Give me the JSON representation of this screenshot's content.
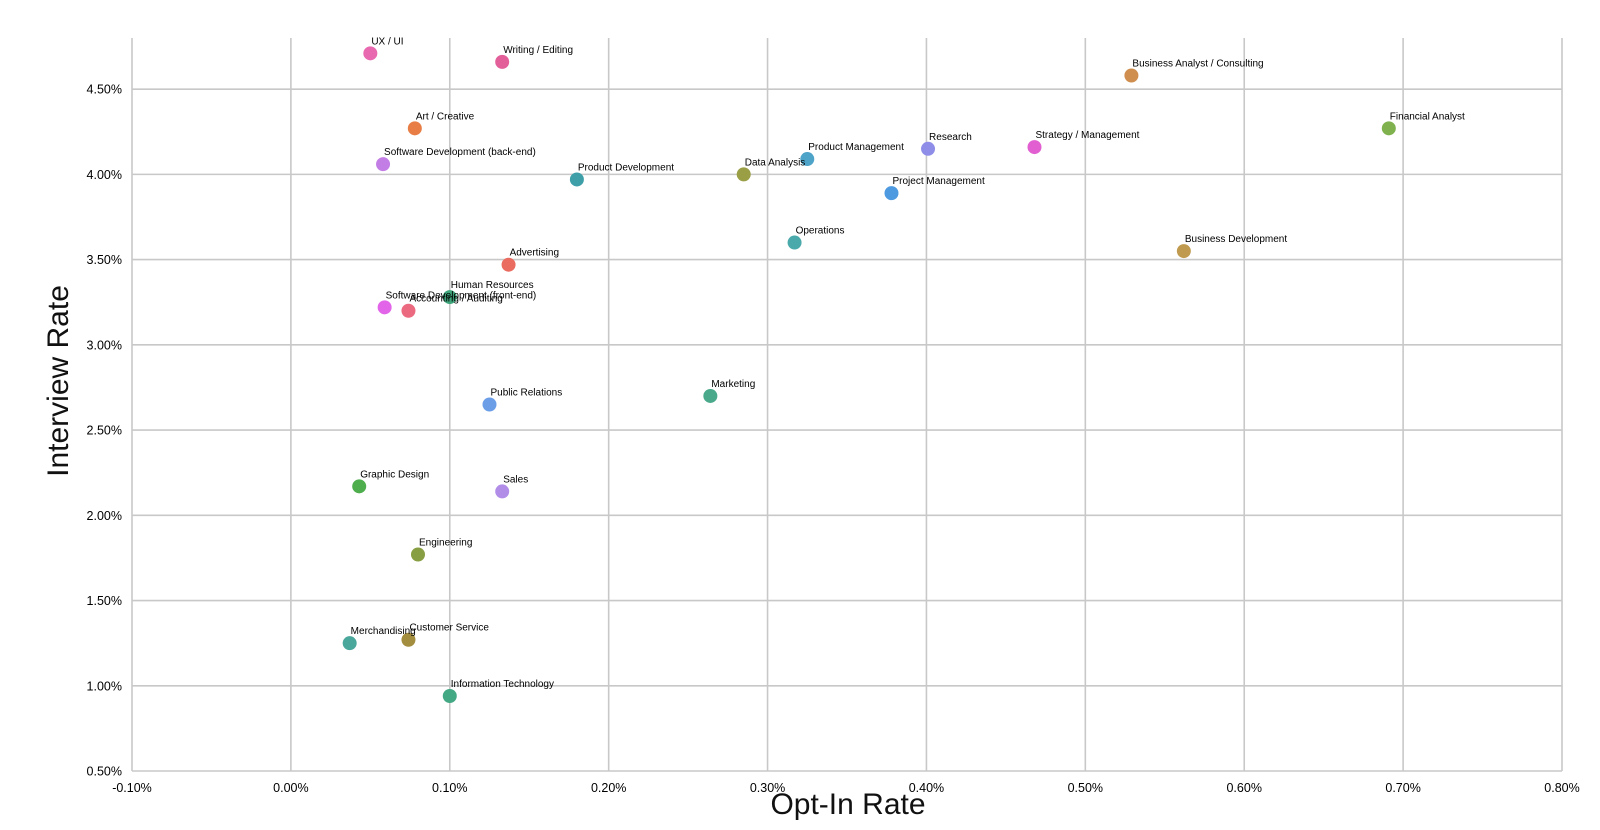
{
  "chart_data": {
    "type": "scatter",
    "title": "",
    "xlabel": "Opt-In Rate",
    "ylabel": "Interview Rate",
    "xlim": [
      -0.1,
      0.8
    ],
    "ylim": [
      0.5,
      4.8
    ],
    "x_ticks": [
      {
        "value": -0.1,
        "label": "-0.10%"
      },
      {
        "value": 0.0,
        "label": "0.00%"
      },
      {
        "value": 0.1,
        "label": "0.10%"
      },
      {
        "value": 0.2,
        "label": "0.20%"
      },
      {
        "value": 0.3,
        "label": "0.30%"
      },
      {
        "value": 0.4,
        "label": "0.40%"
      },
      {
        "value": 0.5,
        "label": "0.50%"
      },
      {
        "value": 0.6,
        "label": "0.60%"
      },
      {
        "value": 0.7,
        "label": "0.70%"
      },
      {
        "value": 0.8,
        "label": "0.80%"
      }
    ],
    "y_ticks": [
      {
        "value": 0.5,
        "label": "0.50%"
      },
      {
        "value": 1.0,
        "label": "1.00%"
      },
      {
        "value": 1.5,
        "label": "1.50%"
      },
      {
        "value": 2.0,
        "label": "2.00%"
      },
      {
        "value": 2.5,
        "label": "2.50%"
      },
      {
        "value": 3.0,
        "label": "3.00%"
      },
      {
        "value": 3.5,
        "label": "3.50%"
      },
      {
        "value": 4.0,
        "label": "4.00%"
      },
      {
        "value": 4.5,
        "label": "4.50%"
      }
    ],
    "grid": true,
    "points": [
      {
        "label": "UX / UI",
        "x": 0.05,
        "y": 4.71,
        "color": "#e869b0"
      },
      {
        "label": "Writing / Editing",
        "x": 0.133,
        "y": 4.66,
        "color": "#e25f9a"
      },
      {
        "label": "Business Analyst / Consulting",
        "x": 0.529,
        "y": 4.58,
        "color": "#cf8e4d"
      },
      {
        "label": "Art / Creative",
        "x": 0.078,
        "y": 4.27,
        "color": "#e87e45"
      },
      {
        "label": "Financial Analyst",
        "x": 0.691,
        "y": 4.27,
        "color": "#7fb24e"
      },
      {
        "label": "Software Development (back-end)",
        "x": 0.058,
        "y": 4.06,
        "color": "#c37ee6"
      },
      {
        "label": "Research",
        "x": 0.401,
        "y": 4.15,
        "color": "#8e8de8"
      },
      {
        "label": "Strategy / Management",
        "x": 0.468,
        "y": 4.16,
        "color": "#e15fd0"
      },
      {
        "label": "Product Management",
        "x": 0.325,
        "y": 4.09,
        "color": "#4ea3c8"
      },
      {
        "label": "Product Development",
        "x": 0.18,
        "y": 3.97,
        "color": "#3e9fa8"
      },
      {
        "label": "Data Analysis",
        "x": 0.285,
        "y": 4.0,
        "color": "#9a9e45"
      },
      {
        "label": "Project Management",
        "x": 0.378,
        "y": 3.89,
        "color": "#4d9ae0"
      },
      {
        "label": "Operations",
        "x": 0.317,
        "y": 3.6,
        "color": "#4aa9aa"
      },
      {
        "label": "Business Development",
        "x": 0.562,
        "y": 3.55,
        "color": "#c09a4f"
      },
      {
        "label": "Advertising",
        "x": 0.137,
        "y": 3.47,
        "color": "#ea6b60"
      },
      {
        "label": "Human Resources",
        "x": 0.1,
        "y": 3.28,
        "color": "#3fa67c"
      },
      {
        "label": "Software Development (front-end)",
        "x": 0.059,
        "y": 3.22,
        "color": "#e264e8"
      },
      {
        "label": "Accounting / Auditing",
        "x": 0.074,
        "y": 3.2,
        "color": "#ec6a80"
      },
      {
        "label": "Public Relations",
        "x": 0.125,
        "y": 2.65,
        "color": "#6c9ee8"
      },
      {
        "label": "Marketing",
        "x": 0.264,
        "y": 2.7,
        "color": "#4aa98a"
      },
      {
        "label": "Graphic Design",
        "x": 0.043,
        "y": 2.17,
        "color": "#4ead4d"
      },
      {
        "label": "Sales",
        "x": 0.133,
        "y": 2.14,
        "color": "#b18de8"
      },
      {
        "label": "Engineering",
        "x": 0.08,
        "y": 1.77,
        "color": "#879e42"
      },
      {
        "label": "Customer Service",
        "x": 0.074,
        "y": 1.27,
        "color": "#a38d3e"
      },
      {
        "label": "Merchandising",
        "x": 0.037,
        "y": 1.25,
        "color": "#49a79c"
      },
      {
        "label": "Information Technology",
        "x": 0.1,
        "y": 0.94,
        "color": "#43a884"
      }
    ]
  }
}
